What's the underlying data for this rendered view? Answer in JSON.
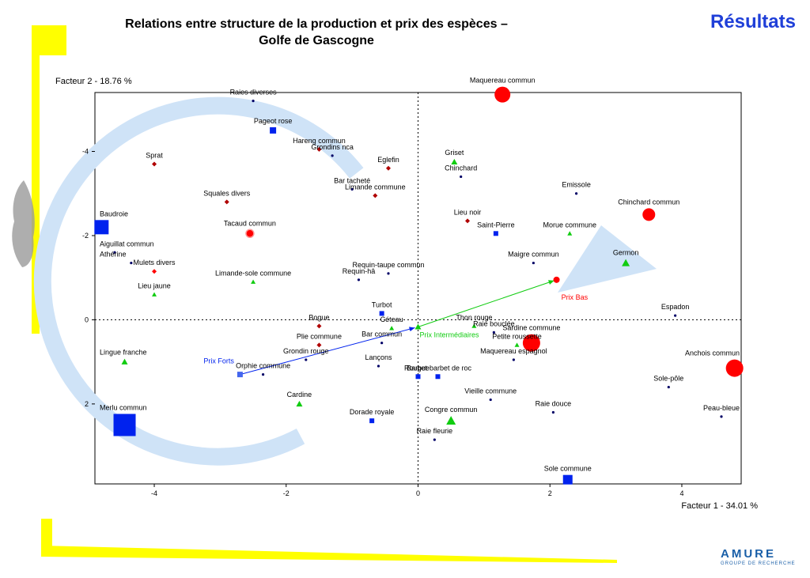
{
  "slide": {
    "title_line1": "Relations entre structure de la production et prix des espèces –",
    "title_line2": "Golfe de Gascogne",
    "section": "Résultats",
    "logo_word": "AMURE",
    "logo_sub": "GROUPE DE RECHERCHE",
    "accent_yellow": "#ffff00",
    "accent_blue": "#1f3fd8"
  },
  "chart_data": {
    "type": "scatter",
    "title": "",
    "xlabel": "Facteur 1  -  34.01 %",
    "ylabel": "Facteur 2  -  18.76 %",
    "xlim": [
      -4.9,
      4.9
    ],
    "ylim": [
      -5.4,
      3.9
    ],
    "y_inverted": true,
    "x_ticks": [
      -4,
      -2,
      0,
      2,
      4
    ],
    "y_ticks": [
      -4,
      -2,
      0,
      2
    ],
    "grid": false,
    "reference_lines": "dotted at x=0 and y=0",
    "colors": {
      "navy": "#000066",
      "red": "#ff0000",
      "darkred": "#b00000",
      "blue": "#0022ee",
      "green": "#11cc11",
      "axis": "#000000"
    },
    "points": [
      {
        "label": "Maquereau commun",
        "x": 1.28,
        "y": -5.35,
        "marker": "circle",
        "size": 10,
        "color": "red"
      },
      {
        "label": "Raies diverses",
        "x": -2.5,
        "y": -5.2,
        "marker": "dot",
        "size": 3,
        "color": "navy"
      },
      {
        "label": "Pageot rose",
        "x": -2.2,
        "y": -4.5,
        "marker": "square",
        "size": 4,
        "color": "blue"
      },
      {
        "label": "Hareng commun",
        "x": -1.5,
        "y": -4.05,
        "marker": "diamond",
        "size": 3,
        "color": "darkred"
      },
      {
        "label": "Grondins nca",
        "x": -1.3,
        "y": -3.9,
        "marker": "dot",
        "size": 3,
        "color": "navy"
      },
      {
        "label": "Sprat",
        "x": -4.0,
        "y": -3.7,
        "marker": "diamond",
        "size": 3,
        "color": "darkred"
      },
      {
        "label": "Griset",
        "x": 0.55,
        "y": -3.75,
        "marker": "triangle",
        "size": 4,
        "color": "green"
      },
      {
        "label": "Eglefin",
        "x": -0.45,
        "y": -3.6,
        "marker": "diamond",
        "size": 3,
        "color": "darkred"
      },
      {
        "label": "Chinchard",
        "x": 0.65,
        "y": -3.4,
        "marker": "dot",
        "size": 3,
        "color": "navy"
      },
      {
        "label": "Bar tacheté",
        "x": -1.0,
        "y": -3.1,
        "marker": "dot",
        "size": 3,
        "color": "navy"
      },
      {
        "label": "Limande commune",
        "x": -0.65,
        "y": -2.95,
        "marker": "diamond",
        "size": 3,
        "color": "darkred"
      },
      {
        "label": "Emissole",
        "x": 2.4,
        "y": -3.0,
        "marker": "dot",
        "size": 3,
        "color": "navy"
      },
      {
        "label": "Squales divers",
        "x": -2.9,
        "y": -2.8,
        "marker": "diamond",
        "size": 3,
        "color": "darkred"
      },
      {
        "label": "Lieu noir",
        "x": 0.75,
        "y": -2.35,
        "marker": "diamond",
        "size": 3,
        "color": "darkred"
      },
      {
        "label": "Chinchard commun",
        "x": 3.5,
        "y": -2.5,
        "marker": "circle",
        "size": 8,
        "color": "red"
      },
      {
        "label": "Baudroie",
        "x": -4.8,
        "y": -2.2,
        "marker": "square",
        "size": 9,
        "color": "blue"
      },
      {
        "label": "Saint-Pierre",
        "x": 1.18,
        "y": -2.05,
        "marker": "square",
        "size": 3,
        "color": "blue"
      },
      {
        "label": "Morue commune",
        "x": 2.3,
        "y": -2.05,
        "marker": "triangle",
        "size": 3,
        "color": "green"
      },
      {
        "label": "Tacaud commun",
        "x": -2.55,
        "y": -2.05,
        "marker": "star",
        "size": 5,
        "color": "red"
      },
      {
        "label": "Aiguillat commun",
        "x": -4.6,
        "y": -1.6,
        "marker": "dot",
        "size": 3,
        "color": "navy"
      },
      {
        "label": "Athérine",
        "x": -4.35,
        "y": -1.35,
        "marker": "dot",
        "size": 3,
        "color": "navy"
      },
      {
        "label": "Maigre commun",
        "x": 1.75,
        "y": -1.35,
        "marker": "dot",
        "size": 3,
        "color": "navy"
      },
      {
        "label": "Germon",
        "x": 3.15,
        "y": -1.35,
        "marker": "triangle",
        "size": 5,
        "color": "green"
      },
      {
        "label": "Requin-taupe commun",
        "x": -0.45,
        "y": -1.1,
        "marker": "dot",
        "size": 3,
        "color": "navy"
      },
      {
        "label": "Mulets divers",
        "x": -4.0,
        "y": -1.15,
        "marker": "diamond",
        "size": 3,
        "color": "red"
      },
      {
        "label": "Requin-hâ",
        "x": -0.9,
        "y": -0.95,
        "marker": "dot",
        "size": 3,
        "color": "navy"
      },
      {
        "label": "Limande-sole commune",
        "x": -2.5,
        "y": -0.9,
        "marker": "triangle",
        "size": 3,
        "color": "green"
      },
      {
        "label": "Lieu jaune",
        "x": -4.0,
        "y": -0.6,
        "marker": "triangle",
        "size": 3,
        "color": "green"
      },
      {
        "label": "Espadon",
        "x": 3.9,
        "y": -0.1,
        "marker": "dot",
        "size": 3,
        "color": "navy"
      },
      {
        "label": "Turbot",
        "x": -0.55,
        "y": -0.15,
        "marker": "square",
        "size": 3,
        "color": "blue"
      },
      {
        "label": "Bogue",
        "x": -1.5,
        "y": 0.15,
        "marker": "diamond",
        "size": 3,
        "color": "darkred"
      },
      {
        "label": "Céteau",
        "x": -0.4,
        "y": 0.2,
        "marker": "triangle",
        "size": 3,
        "color": "green"
      },
      {
        "label": "Thon rouge",
        "x": 0.85,
        "y": 0.15,
        "marker": "triangle",
        "size": 3,
        "color": "green"
      },
      {
        "label": "Raie bouclée",
        "x": 1.15,
        "y": 0.3,
        "marker": "dot",
        "size": 3,
        "color": "navy"
      },
      {
        "label": "Sardine commune",
        "x": 1.72,
        "y": 0.55,
        "marker": "circle",
        "size": 11,
        "color": "red"
      },
      {
        "label": "Petite roussette",
        "x": 1.5,
        "y": 0.6,
        "marker": "triangle",
        "size": 3,
        "color": "green"
      },
      {
        "label": "Plie commune",
        "x": -1.5,
        "y": 0.6,
        "marker": "diamond",
        "size": 3,
        "color": "darkred"
      },
      {
        "label": "Anchois commun",
        "x": 4.8,
        "y": 1.15,
        "marker": "circle",
        "size": 11,
        "color": "red"
      },
      {
        "label": "Bar commun",
        "x": -0.55,
        "y": 0.55,
        "marker": "dot",
        "size": 3,
        "color": "navy"
      },
      {
        "label": "Lingue franche",
        "x": -4.45,
        "y": 1.0,
        "marker": "triangle",
        "size": 4,
        "color": "green"
      },
      {
        "label": "Grondin rouge",
        "x": -1.7,
        "y": 0.95,
        "marker": "dot",
        "size": 3,
        "color": "navy"
      },
      {
        "label": "Maquereau espagnol",
        "x": 1.45,
        "y": 0.95,
        "marker": "dot",
        "size": 3,
        "color": "navy"
      },
      {
        "label": "Rouget-barbet de roc",
        "x": 0.3,
        "y": 1.35,
        "marker": "square",
        "size": 3,
        "color": "blue"
      },
      {
        "label": "Lançons",
        "x": -0.6,
        "y": 1.1,
        "marker": "dot",
        "size": 3,
        "color": "navy"
      },
      {
        "label": "Orphie commune",
        "x": -2.35,
        "y": 1.3,
        "marker": "dot",
        "size": 3,
        "color": "navy"
      },
      {
        "label": "Sole-pôle",
        "x": 3.8,
        "y": 1.6,
        "marker": "dot",
        "size": 3,
        "color": "navy"
      },
      {
        "label": "Barbue",
        "x": 0.0,
        "y": 1.35,
        "marker": "square",
        "size": 3,
        "color": "blue"
      },
      {
        "label": "Cardine",
        "x": -1.8,
        "y": 2.0,
        "marker": "triangle",
        "size": 4,
        "color": "green"
      },
      {
        "label": "Vieille commune",
        "x": 1.1,
        "y": 1.9,
        "marker": "dot",
        "size": 3,
        "color": "navy"
      },
      {
        "label": "Raie douce",
        "x": 2.05,
        "y": 2.2,
        "marker": "dot",
        "size": 3,
        "color": "navy"
      },
      {
        "label": "Peau-bleue",
        "x": 4.6,
        "y": 2.3,
        "marker": "dot",
        "size": 3,
        "color": "navy"
      },
      {
        "label": "Merlu commun",
        "x": -4.45,
        "y": 2.5,
        "marker": "square",
        "size": 14,
        "color": "blue"
      },
      {
        "label": "Congre commun",
        "x": 0.5,
        "y": 2.4,
        "marker": "triangle",
        "size": 6,
        "color": "green"
      },
      {
        "label": "Dorade royale",
        "x": -0.7,
        "y": 2.4,
        "marker": "square",
        "size": 3,
        "color": "blue"
      },
      {
        "label": "Raie fleurie",
        "x": 0.25,
        "y": 2.85,
        "marker": "dot",
        "size": 3,
        "color": "navy"
      },
      {
        "label": "Sole commune",
        "x": 2.27,
        "y": 3.8,
        "marker": "square",
        "size": 6,
        "color": "blue"
      }
    ],
    "supplementary": [
      {
        "label": "Prix Forts",
        "x": -2.7,
        "y": 1.3,
        "color": "blue"
      },
      {
        "label": "Prix Intermédiaires",
        "x": 0.0,
        "y": 0.17,
        "color": "green"
      },
      {
        "label": "Prix Bas",
        "x": 2.1,
        "y": -0.95,
        "color": "red"
      }
    ],
    "annotations": "light-blue circular arrow around the centre; blue arrow from Prix Forts to Prix Intermédiaires; green arrow from Prix Intermédiaires to Prix Bas"
  }
}
